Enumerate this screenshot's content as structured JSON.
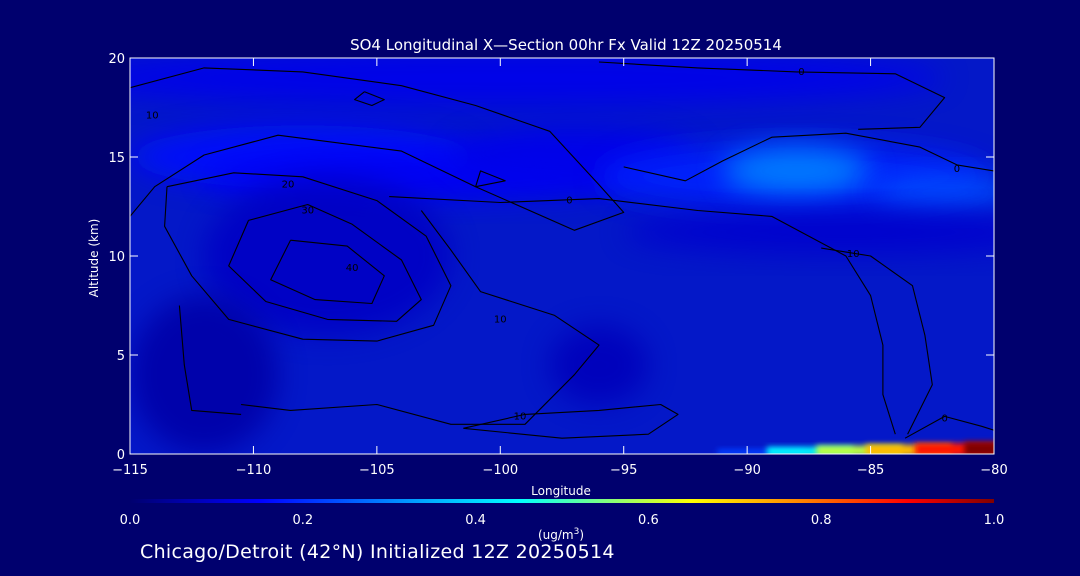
{
  "chart_data": {
    "type": "heatmap",
    "title": "SO4 Longitudinal X—Section 00hr  Fx Valid 12Z 20250514",
    "xlabel": "Longitude",
    "ylabel": "Altitude (km)",
    "xlim": [
      -115,
      -80
    ],
    "ylim": [
      0,
      20
    ],
    "x_ticks": [
      -115,
      -110,
      -105,
      -100,
      -95,
      -90,
      -85,
      -80
    ],
    "x_tick_labels": [
      "−115",
      "−110",
      "−105",
      "−100",
      "−95",
      "−90",
      "−85",
      "−80"
    ],
    "y_ticks": [
      0,
      5,
      10,
      15,
      20
    ],
    "y_tick_labels": [
      "0",
      "5",
      "10",
      "15",
      "20"
    ],
    "colorbar": {
      "min": 0.0,
      "max": 1.0,
      "tick_values": [
        0.0,
        0.2,
        0.4,
        0.6,
        0.8,
        1.0
      ],
      "tick_labels": [
        "0.0",
        "0.2",
        "0.4",
        "0.6",
        "0.8",
        "1.0"
      ],
      "units_label": "(ug/m",
      "units_sup": "3",
      "units_close": ")"
    },
    "field_blobs": [
      {
        "lon": -100,
        "alt": 19.0,
        "rlon": 18,
        "ralt": 1.4,
        "value": 0.13
      },
      {
        "lon": -108,
        "alt": 15.0,
        "rlon": 7,
        "ralt": 1.6,
        "value": 0.16
      },
      {
        "lon": -103,
        "alt": 14.0,
        "rlon": 9,
        "ralt": 1.2,
        "value": 0.14
      },
      {
        "lon": -97,
        "alt": 15.2,
        "rlon": 5,
        "ralt": 1.3,
        "value": 0.13
      },
      {
        "lon": -88,
        "alt": 14.0,
        "rlon": 8,
        "ralt": 1.7,
        "value": 0.19
      },
      {
        "lon": -88,
        "alt": 14.3,
        "rlon": 3,
        "ralt": 1.2,
        "value": 0.3
      },
      {
        "lon": -82,
        "alt": 13.2,
        "rlon": 3,
        "ralt": 0.9,
        "value": 0.24
      },
      {
        "lon": -86,
        "alt": 11.2,
        "rlon": 9,
        "ralt": 1.1,
        "value": 0.1
      },
      {
        "lon": -107,
        "alt": 10.0,
        "rlon": 5,
        "ralt": 4.0,
        "value": 0.09
      },
      {
        "lon": -112,
        "alt": 4.0,
        "rlon": 3,
        "ralt": 4.0,
        "value": 0.06
      },
      {
        "lon": -96,
        "alt": 4.5,
        "rlon": 2,
        "ralt": 2.0,
        "value": 0.08
      }
    ],
    "surface_plume": [
      {
        "lon": -90,
        "value": 0.22
      },
      {
        "lon": -88,
        "value": 0.45
      },
      {
        "lon": -86,
        "value": 0.6
      },
      {
        "lon": -84,
        "value": 0.72
      },
      {
        "lon": -82,
        "value": 0.88
      },
      {
        "lon": -80,
        "value": 1.0
      }
    ],
    "contours": [
      {
        "label": "10",
        "label_at": [
          -114.1,
          17.1
        ],
        "points": [
          [
            -115,
            18.5
          ],
          [
            -112,
            19.5
          ],
          [
            -108,
            19.3
          ],
          [
            -104,
            18.6
          ],
          [
            -101,
            17.6
          ],
          [
            -98,
            16.3
          ],
          [
            -96,
            13.6
          ],
          [
            -95,
            12.2
          ],
          [
            -97,
            11.3
          ],
          [
            -101,
            13.5
          ],
          [
            -104,
            15.3
          ],
          [
            -109,
            16.1
          ],
          [
            -112,
            15.1
          ],
          [
            -114,
            13.5
          ],
          [
            -115,
            12.0
          ]
        ]
      },
      {
        "label": "20",
        "label_at": [
          -108.6,
          13.6
        ],
        "points": [
          [
            -113.5,
            13.5
          ],
          [
            -110.8,
            14.2
          ],
          [
            -108.0,
            14.0
          ],
          [
            -105.0,
            12.8
          ],
          [
            -103.0,
            11.0
          ],
          [
            -102.0,
            8.5
          ],
          [
            -102.7,
            6.5
          ],
          [
            -105.0,
            5.7
          ],
          [
            -108.0,
            5.8
          ],
          [
            -111.0,
            6.8
          ],
          [
            -112.5,
            9.0
          ],
          [
            -113.6,
            11.5
          ],
          [
            -113.5,
            13.5
          ]
        ]
      },
      {
        "label": "30",
        "label_at": [
          -107.8,
          12.3
        ],
        "points": [
          [
            -110.2,
            11.8
          ],
          [
            -107.8,
            12.6
          ],
          [
            -106.0,
            11.6
          ],
          [
            -104.0,
            9.8
          ],
          [
            -103.2,
            7.8
          ],
          [
            -104.2,
            6.7
          ],
          [
            -107.0,
            6.8
          ],
          [
            -109.5,
            7.7
          ],
          [
            -111.0,
            9.5
          ],
          [
            -110.2,
            11.8
          ]
        ]
      },
      {
        "label": "40",
        "label_at": [
          -106.0,
          9.4
        ],
        "points": [
          [
            -108.5,
            10.8
          ],
          [
            -106.2,
            10.5
          ],
          [
            -104.7,
            9.0
          ],
          [
            -105.2,
            7.6
          ],
          [
            -107.5,
            7.8
          ],
          [
            -109.3,
            8.8
          ],
          [
            -108.5,
            10.8
          ]
        ]
      },
      {
        "label": "10",
        "label_at": [
          -100.0,
          6.8
        ],
        "points": [
          [
            -110.5,
            2.5
          ],
          [
            -108.5,
            2.2
          ],
          [
            -105.0,
            2.5
          ],
          [
            -102.0,
            1.5
          ],
          [
            -99.0,
            1.5
          ],
          [
            -97.0,
            4.0
          ],
          [
            -96.0,
            5.5
          ],
          [
            -97.8,
            7.0
          ],
          [
            -100.8,
            8.2
          ],
          [
            -102.0,
            10.3
          ],
          [
            -103.2,
            12.3
          ]
        ]
      },
      {
        "label": "",
        "label_at": null,
        "points": [
          [
            -113.0,
            7.5
          ],
          [
            -112.8,
            4.5
          ],
          [
            -112.5,
            2.2
          ],
          [
            -110.5,
            2.0
          ]
        ]
      },
      {
        "label": "10",
        "label_at": [
          -99.2,
          1.9
        ],
        "points": [
          [
            -101.5,
            1.3
          ],
          [
            -99.0,
            2.0
          ],
          [
            -96.0,
            2.2
          ],
          [
            -93.5,
            2.5
          ],
          [
            -92.8,
            2.0
          ],
          [
            -94.0,
            1.0
          ],
          [
            -97.5,
            0.8
          ],
          [
            -101.5,
            1.3
          ]
        ]
      },
      {
        "label": "0",
        "label_at": [
          -97.2,
          12.8
        ],
        "points": [
          [
            -104.5,
            13.0
          ],
          [
            -100.0,
            12.7
          ],
          [
            -96.0,
            12.9
          ],
          [
            -92.0,
            12.3
          ],
          [
            -89.0,
            12.0
          ],
          [
            -86.0,
            10.0
          ],
          [
            -85.0,
            8.0
          ],
          [
            -84.5,
            5.5
          ],
          [
            -84.5,
            3.0
          ],
          [
            -84.0,
            1.0
          ]
        ]
      },
      {
        "label": "10",
        "label_at": [
          -85.7,
          10.1
        ],
        "points": [
          [
            -87.0,
            10.4
          ],
          [
            -85.0,
            10.0
          ],
          [
            -83.3,
            8.5
          ],
          [
            -82.8,
            6.0
          ],
          [
            -82.5,
            3.5
          ],
          [
            -83.5,
            1.0
          ]
        ]
      },
      {
        "label": "0",
        "label_at": [
          -81.5,
          14.4
        ],
        "points": [
          [
            -95.0,
            14.5
          ],
          [
            -92.5,
            13.8
          ],
          [
            -91.0,
            14.8
          ],
          [
            -89.0,
            16.0
          ],
          [
            -86.0,
            16.2
          ],
          [
            -83.0,
            15.5
          ],
          [
            -81.5,
            14.6
          ],
          [
            -80.0,
            14.3
          ]
        ]
      },
      {
        "label": "0",
        "label_at": [
          -82.0,
          1.8
        ],
        "points": [
          [
            -83.6,
            0.8
          ],
          [
            -82.0,
            1.9
          ],
          [
            -80.5,
            1.4
          ],
          [
            -80.0,
            1.2
          ]
        ]
      },
      {
        "label": "0",
        "label_at": [
          -87.8,
          19.3
        ],
        "points": [
          [
            -96.0,
            19.8
          ],
          [
            -92.0,
            19.5
          ],
          [
            -88.0,
            19.3
          ],
          [
            -84.0,
            19.2
          ],
          [
            -82.0,
            18.0
          ],
          [
            -83.0,
            16.5
          ],
          [
            -85.5,
            16.4
          ]
        ]
      },
      {
        "label": "",
        "label_at": null,
        "points": [
          [
            -105.5,
            18.3
          ],
          [
            -104.7,
            17.9
          ],
          [
            -105.2,
            17.6
          ],
          [
            -105.9,
            17.9
          ],
          [
            -105.5,
            18.3
          ]
        ]
      },
      {
        "label": "",
        "label_at": null,
        "points": [
          [
            -101.0,
            13.5
          ],
          [
            -99.8,
            13.8
          ],
          [
            -100.8,
            14.3
          ],
          [
            -101.0,
            13.5
          ]
        ]
      }
    ]
  },
  "footer": {
    "caption": "Chicago/Detroit (42°N) Initialized 12Z 20250514"
  }
}
